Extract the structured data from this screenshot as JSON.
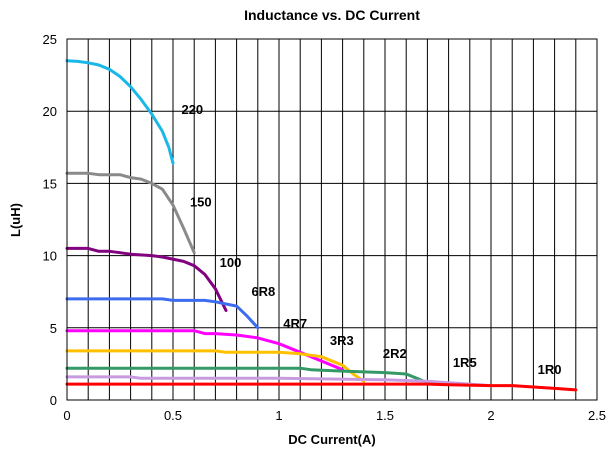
{
  "chart_data": {
    "type": "line",
    "title": "Inductance vs. DC Current",
    "xlabel": "DC Current(A)",
    "ylabel": "L(uH)",
    "xlim": [
      0,
      2.5
    ],
    "ylim": [
      0,
      25
    ],
    "x_ticks": [
      "0",
      "0.5",
      "1",
      "1.5",
      "2",
      "2.5"
    ],
    "y_ticks": [
      "0",
      "5",
      "10",
      "15",
      "20",
      "25"
    ],
    "grid": true,
    "series": [
      {
        "name": "220",
        "color": "#1ab8e8",
        "points": [
          [
            0,
            23.5
          ],
          [
            0.05,
            23.45
          ],
          [
            0.1,
            23.35
          ],
          [
            0.15,
            23.2
          ],
          [
            0.2,
            22.9
          ],
          [
            0.25,
            22.4
          ],
          [
            0.3,
            21.7
          ],
          [
            0.35,
            20.8
          ],
          [
            0.4,
            19.8
          ],
          [
            0.45,
            18.6
          ],
          [
            0.48,
            17.5
          ],
          [
            0.5,
            16.4
          ]
        ],
        "label_at": [
          0.54,
          19.8
        ]
      },
      {
        "name": "150",
        "color": "#8a8a8a",
        "points": [
          [
            0,
            15.7
          ],
          [
            0.1,
            15.7
          ],
          [
            0.15,
            15.6
          ],
          [
            0.25,
            15.6
          ],
          [
            0.3,
            15.4
          ],
          [
            0.35,
            15.3
          ],
          [
            0.4,
            15.0
          ],
          [
            0.45,
            14.6
          ],
          [
            0.5,
            13.5
          ],
          [
            0.55,
            11.9
          ],
          [
            0.6,
            10.2
          ]
        ],
        "label_at": [
          0.58,
          13.4
        ]
      },
      {
        "name": "100",
        "color": "#800080",
        "points": [
          [
            0,
            10.5
          ],
          [
            0.1,
            10.5
          ],
          [
            0.15,
            10.3
          ],
          [
            0.2,
            10.3
          ],
          [
            0.25,
            10.2
          ],
          [
            0.3,
            10.1
          ],
          [
            0.4,
            10.0
          ],
          [
            0.45,
            9.9
          ],
          [
            0.55,
            9.6
          ],
          [
            0.6,
            9.3
          ],
          [
            0.65,
            8.7
          ],
          [
            0.7,
            7.7
          ],
          [
            0.75,
            6.2
          ]
        ],
        "label_at": [
          0.72,
          9.2
        ]
      },
      {
        "name": "6R8",
        "color": "#3c6cf0",
        "points": [
          [
            0,
            7.0
          ],
          [
            0.3,
            7.0
          ],
          [
            0.45,
            7.0
          ],
          [
            0.5,
            6.9
          ],
          [
            0.65,
            6.9
          ],
          [
            0.7,
            6.8
          ],
          [
            0.8,
            6.5
          ],
          [
            0.85,
            5.8
          ],
          [
            0.9,
            5.0
          ]
        ],
        "label_at": [
          0.87,
          7.2
        ]
      },
      {
        "name": "4R7",
        "color": "#ff00ff",
        "points": [
          [
            0,
            4.8
          ],
          [
            0.5,
            4.8
          ],
          [
            0.6,
            4.8
          ],
          [
            0.65,
            4.6
          ],
          [
            0.7,
            4.6
          ],
          [
            0.8,
            4.5
          ],
          [
            0.9,
            4.3
          ],
          [
            1.0,
            3.9
          ],
          [
            1.1,
            3.3
          ],
          [
            1.2,
            2.7
          ],
          [
            1.3,
            2.1
          ]
        ],
        "label_at": [
          1.02,
          5.0
        ]
      },
      {
        "name": "3R3",
        "color": "#ffc000",
        "points": [
          [
            0,
            3.4
          ],
          [
            0.7,
            3.4
          ],
          [
            0.75,
            3.3
          ],
          [
            0.85,
            3.3
          ],
          [
            1.0,
            3.3
          ],
          [
            1.1,
            3.2
          ],
          [
            1.2,
            3.0
          ],
          [
            1.3,
            2.4
          ],
          [
            1.35,
            1.8
          ],
          [
            1.4,
            1.3
          ]
        ],
        "label_at": [
          1.24,
          3.8
        ]
      },
      {
        "name": "2R2",
        "color": "#339966",
        "points": [
          [
            0,
            2.2
          ],
          [
            1.1,
            2.2
          ],
          [
            1.15,
            2.1
          ],
          [
            1.3,
            2.0
          ],
          [
            1.5,
            1.9
          ],
          [
            1.6,
            1.8
          ],
          [
            1.65,
            1.5
          ],
          [
            1.7,
            1.2
          ],
          [
            1.75,
            1.2
          ]
        ],
        "label_at": [
          1.49,
          2.9
        ]
      },
      {
        "name": "1R5",
        "color": "#c89be0",
        "points": [
          [
            0,
            1.6
          ],
          [
            0.3,
            1.6
          ],
          [
            0.35,
            1.5
          ],
          [
            0.5,
            1.5
          ],
          [
            1.0,
            1.5
          ],
          [
            1.5,
            1.4
          ],
          [
            1.7,
            1.3
          ],
          [
            1.8,
            1.2
          ],
          [
            1.9,
            1.1
          ],
          [
            2.0,
            1.0
          ]
        ],
        "label_at": [
          1.82,
          2.3
        ]
      },
      {
        "name": "1R0",
        "color": "#ff0000",
        "points": [
          [
            0,
            1.1
          ],
          [
            0.5,
            1.1
          ],
          [
            1.0,
            1.1
          ],
          [
            1.5,
            1.1
          ],
          [
            1.7,
            1.1
          ],
          [
            1.8,
            1.05
          ],
          [
            2.0,
            1.0
          ],
          [
            2.1,
            1.0
          ],
          [
            2.2,
            0.9
          ],
          [
            2.3,
            0.8
          ],
          [
            2.4,
            0.7
          ]
        ],
        "label_at": [
          2.22,
          1.8
        ]
      }
    ]
  }
}
